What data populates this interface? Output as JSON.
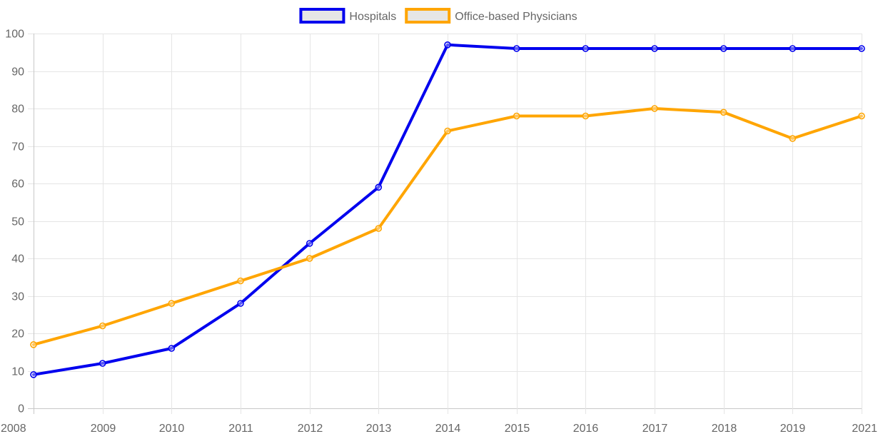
{
  "chart_data": {
    "type": "line",
    "title": "",
    "xlabel": "",
    "ylabel": "",
    "x": [
      "2008",
      "2009",
      "2010",
      "2011",
      "2012",
      "2013",
      "2014",
      "2015",
      "2016",
      "2017",
      "2018",
      "2019",
      "2021"
    ],
    "yticks": [
      "0",
      "10",
      "20",
      "30",
      "40",
      "50",
      "60",
      "70",
      "80",
      "90",
      "100"
    ],
    "ylim": [
      0,
      100
    ],
    "grid": true,
    "legend_position": "top-center",
    "series": [
      {
        "name": "Hospitals",
        "color": "#0000ee",
        "values": [
          9,
          12,
          16,
          28,
          44,
          59,
          97,
          96,
          96,
          96,
          96,
          96,
          96
        ]
      },
      {
        "name": "Office-based Physicians",
        "color": "#ffa500",
        "values": [
          17,
          22,
          28,
          34,
          40,
          48,
          74,
          78,
          78,
          80,
          79,
          72,
          78
        ]
      }
    ]
  }
}
